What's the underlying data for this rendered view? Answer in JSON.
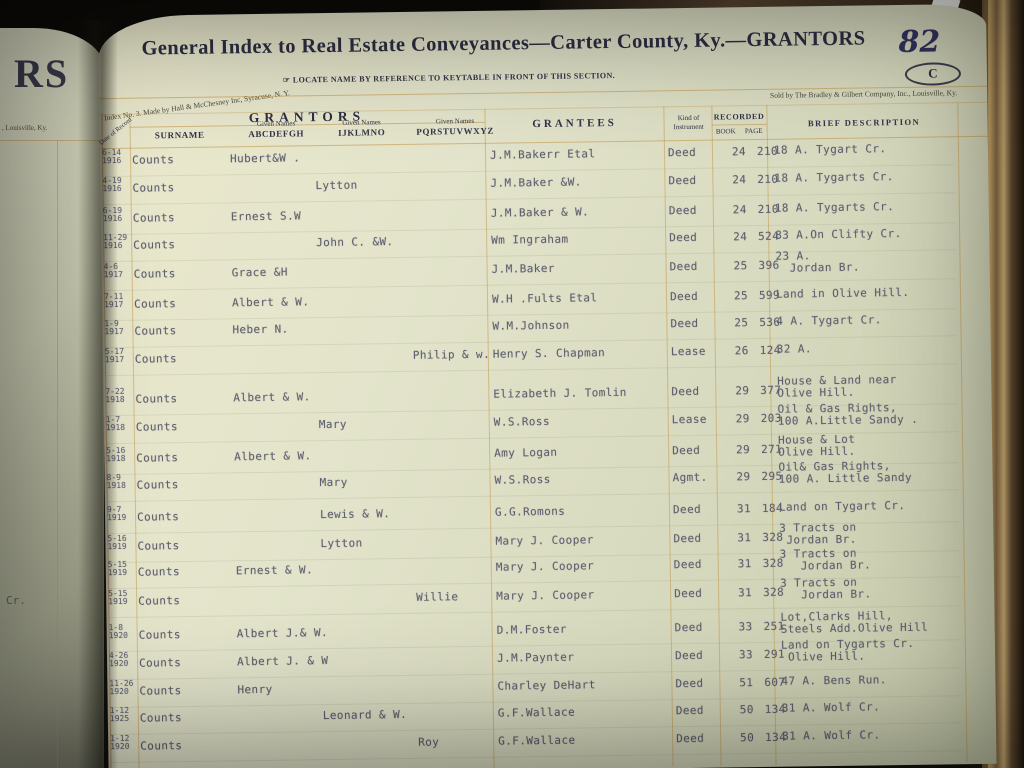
{
  "left_page": {
    "partial_header": "RS",
    "partial_imprint": ", Louisville, Ky.",
    "stray_text": "Cr."
  },
  "page": {
    "title": "General Index to Real Estate Conveyances—Carter County, Ky.—GRANTORS",
    "page_number": "82",
    "section_letter": "C",
    "locate_note": "☞ LOCATE NAME BY REFERENCE TO KEYTABLE IN FRONT OF THIS SECTION.",
    "maker_note": "Index No. 3.  Made by Hall & McChesney Inc, Syracuse, N. Y.",
    "sold_note": "Sold by The Bradley & Gilbert Company, Inc., Louisville, Ky.",
    "table": {
      "group_header": "GRANTORS",
      "col_date": "Date of Record",
      "col_surname": "SURNAME",
      "given_label": "Given Names",
      "col_given_a": "ABCDEFGH",
      "col_given_i": "IJKLMNO",
      "col_given_p": "PQRSTUVWXYZ",
      "col_grantees": "GRANTEES",
      "col_kind_line1": "Kind of",
      "col_kind_line2": "Instrument",
      "col_recorded": "RECORDED",
      "col_book": "BOOK",
      "col_page": "PAGE",
      "col_brief": "BRIEF DESCRIPTION",
      "rows": [
        {
          "date_md": "6-14",
          "date_year": "1916",
          "surname": "Counts",
          "given_abc": "Hubert&W .",
          "given_ijk": "",
          "given_pqr": "",
          "grantee": "J.M.Bakerr Etal",
          "kind": "Deed",
          "book": "24",
          "page": "210",
          "desc1": "18 A. Tygart Cr.",
          "desc2": ""
        },
        {
          "date_md": "4-19",
          "date_year": "1916",
          "surname": "Counts",
          "given_abc": "",
          "given_ijk": "Lytton",
          "given_pqr": "",
          "grantee": "J.M.Baker &W.",
          "kind": "Deed",
          "book": "24",
          "page": "210",
          "desc1": "18 A. Tygarts Cr.",
          "desc2": ""
        },
        {
          "date_md": "6-19",
          "date_year": "1916",
          "surname": "Counts",
          "given_abc": "Ernest S.W",
          "given_ijk": "",
          "given_pqr": "",
          "grantee": "J.M.Baker & W.",
          "kind": "Deed",
          "book": "24",
          "page": "210",
          "desc1": "18 A. Tygarts Cr.",
          "desc2": ""
        },
        {
          "date_md": "11-29",
          "date_year": "1916",
          "surname": "Counts",
          "given_abc": "",
          "given_ijk": "John C. &W.",
          "given_pqr": "",
          "grantee": "Wm Ingraham",
          "kind": "Deed",
          "book": "24",
          "page": "524",
          "desc1": "83 A.On Clifty Cr.",
          "desc2": ""
        },
        {
          "date_md": "4-6",
          "date_year": "1917",
          "surname": "Counts",
          "given_abc": "Grace &H",
          "given_ijk": "",
          "given_pqr": "",
          "grantee": "J.M.Baker",
          "kind": "Deed",
          "book": "25",
          "page": "396",
          "desc1": "23 A.",
          "desc2": "  Jordan Br."
        },
        {
          "date_md": "7-11",
          "date_year": "1917",
          "surname": "Counts",
          "given_abc": "Albert & W.",
          "given_ijk": "",
          "given_pqr": "",
          "grantee": "W.H .Fults Etal",
          "kind": "Deed",
          "book": "25",
          "page": "599",
          "desc1": "Land in Olive Hill.",
          "desc2": ""
        },
        {
          "date_md": "1-9",
          "date_year": "1917",
          "surname": "Counts",
          "given_abc": "Heber N.",
          "given_ijk": "",
          "given_pqr": "",
          "grantee": "W.M.Johnson",
          "kind": "Deed",
          "book": "25",
          "page": "536",
          "desc1": "4 A. Tygart Cr.",
          "desc2": ""
        },
        {
          "date_md": "5-17",
          "date_year": "1917",
          "surname": "Counts",
          "given_abc": "",
          "given_ijk": "",
          "given_pqr": "Philip & w.",
          "grantee": "Henry S. Chapman",
          "kind": "Lease",
          "book": "26",
          "page": "124",
          "desc1": "32 A.",
          "desc2": ""
        },
        {
          "date_md": "7-22",
          "date_year": "1918",
          "surname": "Counts",
          "given_abc": "Albert & W.",
          "given_ijk": "",
          "given_pqr": "",
          "grantee": "Elizabeth J. Tomlin",
          "kind": "Deed",
          "book": "29",
          "page": "377",
          "desc1": "House & Land near",
          "desc2": "Olive Hill."
        },
        {
          "date_md": "1-7",
          "date_year": "1918",
          "surname": "Counts",
          "given_abc": "",
          "given_ijk": "Mary",
          "given_pqr": "",
          "grantee": "W.S.Ross",
          "kind": "Lease",
          "book": "29",
          "page": "203",
          "desc1": "Oil & Gas Rights,",
          "desc2": "100 A.Little Sandy ."
        },
        {
          "date_md": "5-16",
          "date_year": "1918",
          "surname": "Counts",
          "given_abc": "Albert & W.",
          "given_ijk": "",
          "given_pqr": "",
          "grantee": "Amy Logan",
          "kind": "Deed",
          "book": "29",
          "page": "271",
          "desc1": "House & Lot",
          "desc2": "Olive Hill."
        },
        {
          "date_md": "8-9",
          "date_year": "1918",
          "surname": "Counts",
          "given_abc": "",
          "given_ijk": "Mary",
          "given_pqr": "",
          "grantee": "W.S.Ross",
          "kind": "Agmt.",
          "book": "29",
          "page": "295",
          "desc1": "Oil& Gas Rights,",
          "desc2": "100 A. Little Sandy"
        },
        {
          "date_md": "9-7",
          "date_year": "1919",
          "surname": "Counts",
          "given_abc": "",
          "given_ijk": "Lewis & W.",
          "given_pqr": "",
          "grantee": "G.G.Romons",
          "kind": "Deed",
          "book": "31",
          "page": "184",
          "desc1": "Land on Tygart Cr.",
          "desc2": ""
        },
        {
          "date_md": "5-16",
          "date_year": "1919",
          "surname": "Counts",
          "given_abc": "",
          "given_ijk": "Lytton",
          "given_pqr": "",
          "grantee": "Mary J. Cooper",
          "kind": "Deed",
          "book": "31",
          "page": "328",
          "desc1": "3 Tracts on",
          "desc2": " Jordan Br."
        },
        {
          "date_md": "5-15",
          "date_year": "1919",
          "surname": "Counts",
          "given_abc": "Ernest & W.",
          "given_ijk": "",
          "given_pqr": "",
          "grantee": "Mary J. Cooper",
          "kind": "Deed",
          "book": "31",
          "page": "328",
          "desc1": "3 Tracts on",
          "desc2": "   Jordan Br."
        },
        {
          "date_md": "5-15",
          "date_year": "1919",
          "surname": "Counts",
          "given_abc": "",
          "given_ijk": "",
          "given_pqr": "Willie",
          "grantee": "Mary J. Cooper",
          "kind": "Deed",
          "book": "31",
          "page": "328",
          "desc1": "3 Tracts on",
          "desc2": "   Jordan Br."
        },
        {
          "date_md": "1-8",
          "date_year": "1920",
          "surname": "Counts",
          "given_abc": "Albert J.& W.",
          "given_ijk": "",
          "given_pqr": "",
          "grantee": "D.M.Foster",
          "kind": "Deed",
          "book": "33",
          "page": "251",
          "desc1": "Lot,Clarks Hill,",
          "desc2": "Steels Add.Olive Hill"
        },
        {
          "date_md": "4-26",
          "date_year": "1920",
          "surname": "Counts",
          "given_abc": "Albert J. & W",
          "given_ijk": "",
          "given_pqr": "",
          "grantee": "J.M.Paynter",
          "kind": "Deed",
          "book": "33",
          "page": "291",
          "desc1": "Land on Tygarts Cr.",
          "desc2": " Olive Hill."
        },
        {
          "date_md": "11-26",
          "date_year": "1920",
          "surname": "Counts",
          "given_abc": "Henry",
          "given_ijk": "",
          "given_pqr": "",
          "grantee": "Charley DeHart",
          "kind": "Deed",
          "book": "51",
          "page": "607",
          "desc1": "47 A. Bens Run.",
          "desc2": ""
        },
        {
          "date_md": "1-12",
          "date_year": "1925",
          "surname": "Counts",
          "given_abc": "",
          "given_ijk": "Leonard & W.",
          "given_pqr": "",
          "grantee": "G.F.Wallace",
          "kind": "Deed",
          "book": "50",
          "page": "134",
          "desc1": "31 A. Wolf Cr.",
          "desc2": ""
        },
        {
          "date_md": "1-12",
          "date_year": "1920",
          "surname": "Counts",
          "given_abc": "",
          "given_ijk": "",
          "given_pqr": "Roy",
          "grantee": "G.F.Wallace",
          "kind": "Deed",
          "book": "50",
          "page": "134",
          "desc1": "31 A. Wolf Cr.",
          "desc2": ""
        }
      ]
    }
  }
}
